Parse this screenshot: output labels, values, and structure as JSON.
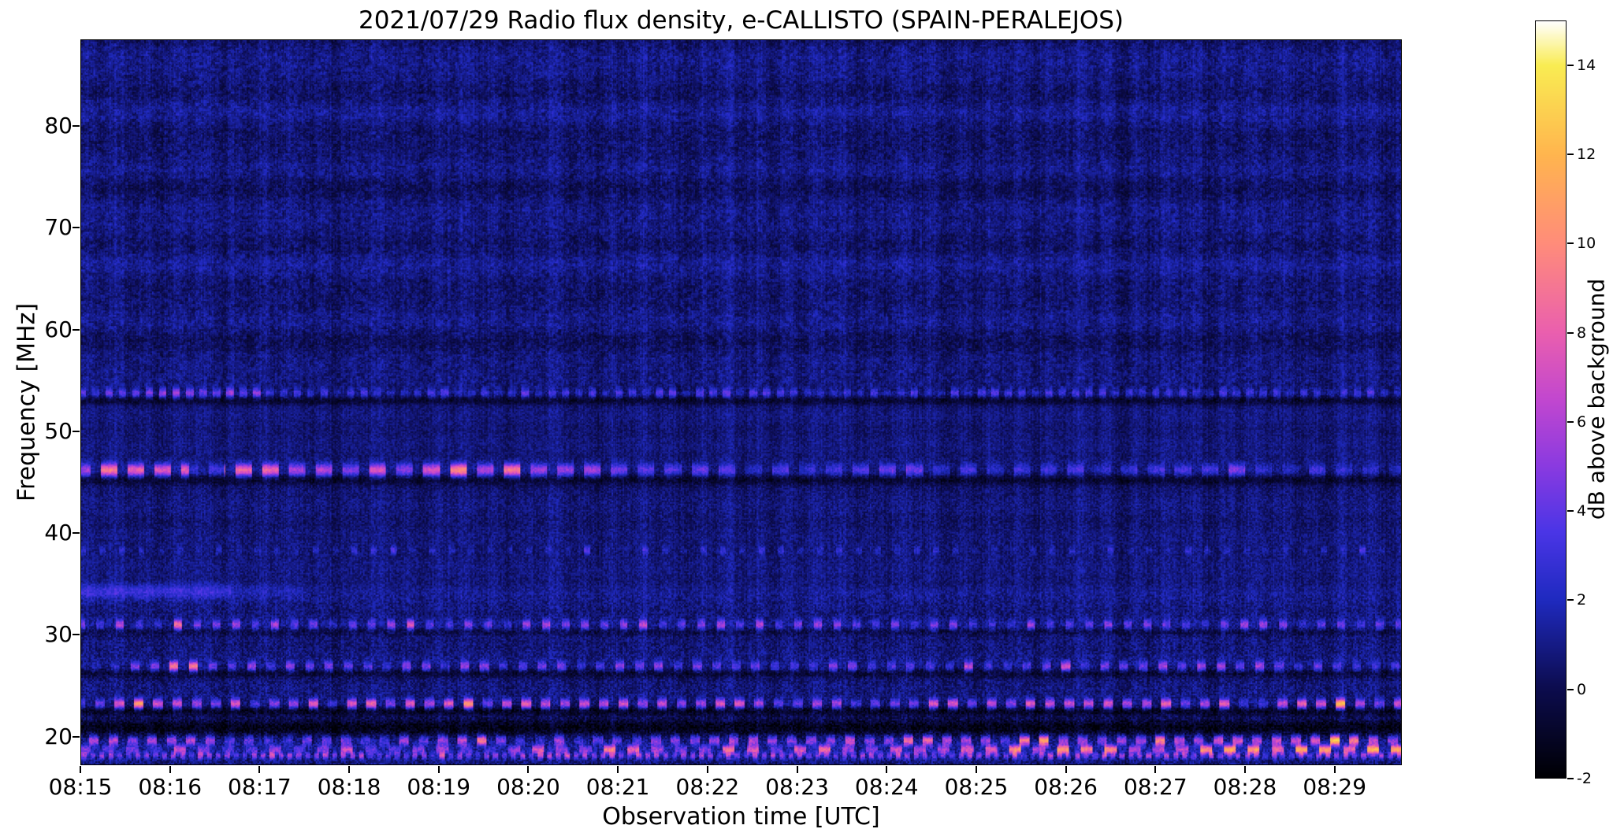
{
  "chart_data": {
    "type": "heatmap",
    "title": "2021/07/29  Radio flux density, e-CALLISTO (SPAIN-PERALEJOS)",
    "date": "2021/07/29",
    "instrument": "e-CALLISTO",
    "station": "SPAIN-PERALEJOS",
    "xlabel": "Observation time [UTC]",
    "ylabel": "Frequency [MHz]",
    "x_ticks": [
      "08:15",
      "08:16",
      "08:17",
      "08:18",
      "08:19",
      "08:20",
      "08:21",
      "08:22",
      "08:23",
      "08:24",
      "08:25",
      "08:26",
      "08:27",
      "08:28",
      "08:29"
    ],
    "x_range_utc": [
      "08:15:00",
      "08:29:45"
    ],
    "duration_s": 885,
    "y_ticks": [
      20,
      30,
      40,
      50,
      60,
      70,
      80
    ],
    "freq_range_mhz": [
      17.2,
      88.5
    ],
    "grid": false,
    "colorbar": {
      "label": "dB above background",
      "range": [
        -2,
        15
      ],
      "ticks": [
        14,
        12,
        10,
        8,
        6,
        4,
        2,
        0,
        -2
      ],
      "stops": [
        [
          -2,
          "#000004"
        ],
        [
          0,
          "#0c0c4e"
        ],
        [
          2,
          "#1f2ac0"
        ],
        [
          3.5,
          "#4a35e6"
        ],
        [
          5,
          "#8a3ae0"
        ],
        [
          6.5,
          "#c247cf"
        ],
        [
          8,
          "#ea5fae"
        ],
        [
          10,
          "#ff8c7a"
        ],
        [
          12,
          "#ffb54e"
        ],
        [
          14,
          "#f9ec52"
        ],
        [
          15,
          "#ffffff"
        ]
      ]
    },
    "background_noise": {
      "mean_db": 0.8,
      "spread_db": 1.0,
      "blocky_above_mhz": 54
    },
    "features": [
      {
        "name": "narrowband-54MHz",
        "freq_mhz": 53.8,
        "sigma_mhz": 0.35,
        "amp_db": 2.8,
        "mode": "dashes",
        "period_s": 9,
        "duty": 0.55,
        "phase_s": 2,
        "envelope": [
          [
            0,
            120,
            1.3
          ],
          [
            120,
            885,
            0.8
          ]
        ]
      },
      {
        "name": "dark-lane-53MHz",
        "freq_mhz": 53.1,
        "sigma_mhz": 0.3,
        "amp_db": -1.5,
        "mode": "solid",
        "envelope": [
          [
            0,
            885,
            1
          ]
        ]
      },
      {
        "name": "interference-46MHz",
        "freq_mhz": 46.2,
        "sigma_mhz": 0.45,
        "amp_db": 6.2,
        "mode": "dashes",
        "period_s": 18,
        "duty": 0.62,
        "phase_s": 5,
        "envelope": [
          [
            0,
            72,
            1.05
          ],
          [
            72,
            96,
            0.25
          ],
          [
            96,
            330,
            1.0
          ],
          [
            330,
            600,
            0.4
          ],
          [
            600,
            885,
            0.3
          ]
        ]
      },
      {
        "name": "dark-lane-45MHz",
        "freq_mhz": 45.3,
        "sigma_mhz": 0.4,
        "amp_db": -1.7,
        "mode": "solid",
        "envelope": [
          [
            0,
            885,
            1
          ]
        ]
      },
      {
        "name": "faint-38MHz",
        "freq_mhz": 38.3,
        "sigma_mhz": 0.3,
        "amp_db": 1.6,
        "mode": "dots",
        "period_s": 13,
        "duty": 0.32,
        "phase_s": 1,
        "envelope": [
          [
            0,
            885,
            0.85
          ]
        ]
      },
      {
        "name": "smudge-34MHz",
        "freq_mhz": 34.3,
        "sigma_mhz": 0.5,
        "amp_db": 2.1,
        "mode": "solid",
        "envelope": [
          [
            0,
            100,
            1
          ],
          [
            100,
            150,
            0.45
          ],
          [
            150,
            885,
            0.12
          ]
        ]
      },
      {
        "name": "beacon-31MHz",
        "freq_mhz": 31.0,
        "sigma_mhz": 0.35,
        "amp_db": 3.4,
        "mode": "dots",
        "period_s": 13,
        "duty": 0.4,
        "phase_s": 3,
        "envelope": [
          [
            0,
            885,
            1
          ]
        ]
      },
      {
        "name": "dark-lane-30MHz",
        "freq_mhz": 30.3,
        "sigma_mhz": 0.28,
        "amp_db": -1.1,
        "mode": "solid",
        "envelope": [
          [
            0,
            885,
            1
          ]
        ]
      },
      {
        "name": "beacon-27MHz",
        "freq_mhz": 26.9,
        "sigma_mhz": 0.35,
        "amp_db": 4.2,
        "mode": "dots",
        "period_s": 13,
        "duty": 0.45,
        "phase_s": 6,
        "envelope": [
          [
            0,
            30,
            0.6
          ],
          [
            30,
            85,
            1.5
          ],
          [
            85,
            885,
            0.75
          ]
        ]
      },
      {
        "name": "dark-lane-26MHz",
        "freq_mhz": 26.2,
        "sigma_mhz": 0.3,
        "amp_db": -1.2,
        "mode": "solid",
        "envelope": [
          [
            0,
            885,
            1
          ]
        ]
      },
      {
        "name": "beacon-23MHz",
        "freq_mhz": 23.2,
        "sigma_mhz": 0.35,
        "amp_db": 5.2,
        "mode": "dots",
        "period_s": 13,
        "duty": 0.5,
        "phase_s": 4,
        "envelope": [
          [
            0,
            885,
            1
          ]
        ]
      },
      {
        "name": "dark-lane-22MHz",
        "freq_mhz": 22.5,
        "sigma_mhz": 0.33,
        "amp_db": -1.8,
        "mode": "solid",
        "envelope": [
          [
            0,
            885,
            1
          ]
        ]
      },
      {
        "name": "dark-band-21MHz",
        "freq_mhz": 20.9,
        "sigma_mhz": 0.6,
        "amp_db": -2.2,
        "mode": "solid",
        "envelope": [
          [
            0,
            885,
            1
          ]
        ]
      },
      {
        "name": "beacon-19.6MHz",
        "freq_mhz": 19.6,
        "sigma_mhz": 0.35,
        "amp_db": 4.8,
        "mode": "dots",
        "period_s": 13,
        "duty": 0.5,
        "phase_s": 8,
        "envelope": [
          [
            0,
            500,
            0.8
          ],
          [
            500,
            885,
            1.25
          ]
        ]
      },
      {
        "name": "broadcast-18.7MHz",
        "freq_mhz": 18.7,
        "sigma_mhz": 0.3,
        "amp_db": 5.5,
        "mode": "dashes",
        "period_s": 16,
        "duty": 0.5,
        "phase_s": 2,
        "envelope": [
          [
            0,
            300,
            0.55
          ],
          [
            300,
            600,
            0.9
          ],
          [
            600,
            885,
            1.3
          ]
        ]
      },
      {
        "name": "speckle-18.1MHz",
        "freq_mhz": 18.1,
        "sigma_mhz": 0.25,
        "amp_db": 3.6,
        "mode": "dots",
        "period_s": 6,
        "duty": 0.55,
        "phase_s": 0,
        "envelope": [
          [
            0,
            885,
            1
          ]
        ]
      }
    ]
  }
}
